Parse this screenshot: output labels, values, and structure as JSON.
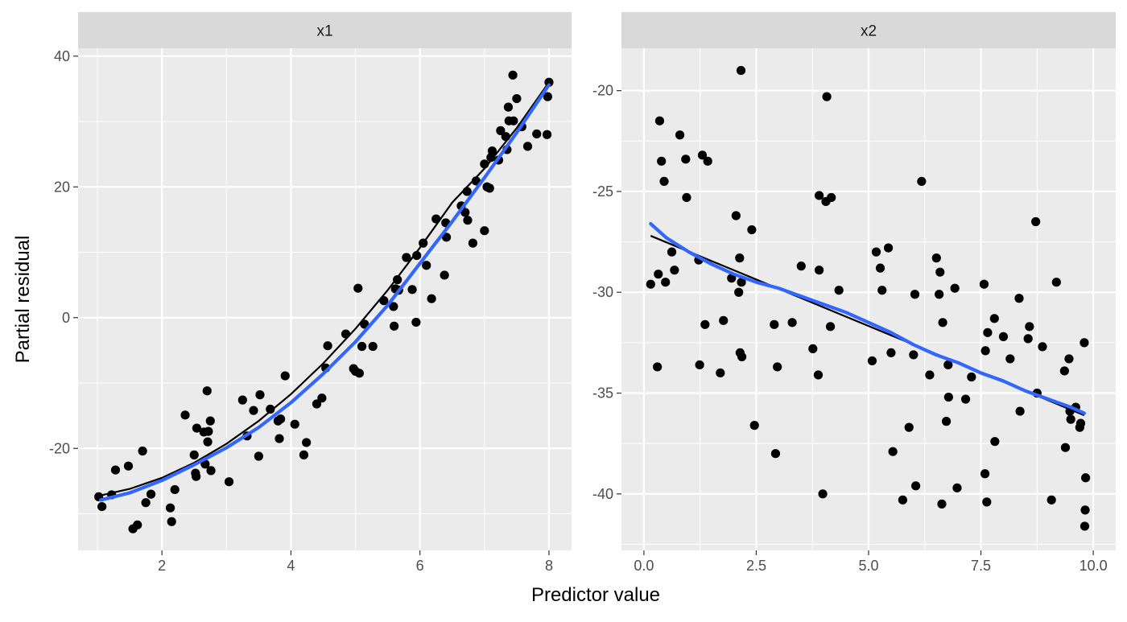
{
  "colors": {
    "panel_bg": "#EBEBEB",
    "strip_bg": "#D9D9D9",
    "grid": "#FFFFFF",
    "points": "#000000",
    "loess_line": "#3366FF",
    "fit_line": "#000000",
    "tick_text": "#4D4D4D"
  },
  "labels": {
    "xlabel": "Predictor value",
    "ylabel": "Partial residual"
  },
  "chart_data": [
    {
      "type": "scatter",
      "facet_label": "x1",
      "xlim": [
        0.7,
        8.35
      ],
      "ylim": [
        -35.6,
        41.2
      ],
      "x_ticks": [
        2,
        4,
        6,
        8
      ],
      "x_tick_labels": [
        "2",
        "4",
        "6",
        "8"
      ],
      "y_ticks": [
        -20,
        0,
        20,
        40
      ],
      "y_tick_labels": [
        "-20",
        "0",
        "20",
        "40"
      ],
      "grid": true,
      "points": [
        [
          1.02,
          -27.4
        ],
        [
          1.07,
          -28.9
        ],
        [
          1.22,
          -27.1
        ],
        [
          1.28,
          -23.3
        ],
        [
          1.48,
          -22.7
        ],
        [
          1.55,
          -32.3
        ],
        [
          1.62,
          -31.7
        ],
        [
          1.7,
          -20.4
        ],
        [
          1.75,
          -28.3
        ],
        [
          1.83,
          -27.0
        ],
        [
          2.13,
          -29.1
        ],
        [
          2.15,
          -31.2
        ],
        [
          2.2,
          -26.3
        ],
        [
          2.36,
          -14.9
        ],
        [
          2.5,
          -21.0
        ],
        [
          2.52,
          -23.8
        ],
        [
          2.53,
          -24.3
        ],
        [
          2.54,
          -16.9
        ],
        [
          2.65,
          -17.5
        ],
        [
          2.67,
          -22.4
        ],
        [
          2.7,
          -11.2
        ],
        [
          2.71,
          -19.0
        ],
        [
          2.72,
          -17.4
        ],
        [
          2.75,
          -15.8
        ],
        [
          2.76,
          -23.4
        ],
        [
          3.04,
          -25.1
        ],
        [
          3.25,
          -12.6
        ],
        [
          3.32,
          -18.1
        ],
        [
          3.42,
          -14.2
        ],
        [
          3.5,
          -21.2
        ],
        [
          3.52,
          -11.8
        ],
        [
          3.68,
          -14.0
        ],
        [
          3.8,
          -15.8
        ],
        [
          3.82,
          -18.5
        ],
        [
          3.84,
          -15.5
        ],
        [
          3.91,
          -8.9
        ],
        [
          4.06,
          -16.3
        ],
        [
          4.2,
          -21.0
        ],
        [
          4.24,
          -19.1
        ],
        [
          4.4,
          -13.2
        ],
        [
          4.48,
          -12.3
        ],
        [
          4.54,
          -7.7
        ],
        [
          4.57,
          -4.3
        ],
        [
          4.85,
          -2.5
        ],
        [
          4.97,
          -7.8
        ],
        [
          5.0,
          -8.2
        ],
        [
          5.04,
          4.5
        ],
        [
          5.06,
          -8.5
        ],
        [
          5.1,
          -4.4
        ],
        [
          5.14,
          -1.0
        ],
        [
          5.27,
          -4.4
        ],
        [
          5.44,
          2.6
        ],
        [
          5.59,
          1.7
        ],
        [
          5.6,
          -1.3
        ],
        [
          5.62,
          4.4
        ],
        [
          5.65,
          5.8
        ],
        [
          5.67,
          4.2
        ],
        [
          5.79,
          9.2
        ],
        [
          5.88,
          4.3
        ],
        [
          5.94,
          -0.7
        ],
        [
          5.95,
          9.5
        ],
        [
          6.05,
          11.4
        ],
        [
          6.1,
          8.0
        ],
        [
          6.18,
          2.9
        ],
        [
          6.25,
          15.1
        ],
        [
          6.38,
          6.5
        ],
        [
          6.4,
          14.5
        ],
        [
          6.41,
          12.3
        ],
        [
          6.64,
          17.1
        ],
        [
          6.7,
          16.1
        ],
        [
          6.73,
          19.3
        ],
        [
          6.74,
          14.9
        ],
        [
          6.82,
          11.4
        ],
        [
          6.87,
          20.9
        ],
        [
          7.0,
          13.3
        ],
        [
          7.0,
          23.5
        ],
        [
          7.04,
          20.0
        ],
        [
          7.08,
          19.8
        ],
        [
          7.1,
          24.5
        ],
        [
          7.12,
          25.5
        ],
        [
          7.22,
          24.1
        ],
        [
          7.25,
          28.6
        ],
        [
          7.33,
          27.7
        ],
        [
          7.35,
          25.7
        ],
        [
          7.37,
          32.2
        ],
        [
          7.38,
          30.1
        ],
        [
          7.44,
          37.1
        ],
        [
          7.45,
          30.1
        ],
        [
          7.5,
          33.5
        ],
        [
          7.58,
          29.2
        ],
        [
          7.67,
          26.2
        ],
        [
          7.81,
          28.1
        ],
        [
          7.97,
          28.0
        ],
        [
          7.98,
          33.8
        ],
        [
          8.0,
          36.0
        ]
      ],
      "loess_line": [
        [
          1.05,
          -27.9
        ],
        [
          1.5,
          -26.8
        ],
        [
          2.0,
          -24.9
        ],
        [
          2.5,
          -22.5
        ],
        [
          3.0,
          -19.9
        ],
        [
          3.5,
          -16.8
        ],
        [
          4.0,
          -13.0
        ],
        [
          4.5,
          -8.6
        ],
        [
          5.0,
          -3.7
        ],
        [
          5.5,
          1.9
        ],
        [
          6.0,
          8.3
        ],
        [
          6.5,
          14.7
        ],
        [
          7.0,
          21.4
        ],
        [
          7.5,
          28.3
        ],
        [
          8.0,
          35.6
        ]
      ],
      "fit_line": [
        [
          1.0,
          -27.3
        ],
        [
          1.5,
          -26.2
        ],
        [
          2.0,
          -24.5
        ],
        [
          2.5,
          -22.2
        ],
        [
          3.0,
          -19.3
        ],
        [
          3.5,
          -15.8
        ],
        [
          4.0,
          -11.7
        ],
        [
          4.5,
          -7.0
        ],
        [
          5.0,
          -1.7
        ],
        [
          5.5,
          4.2
        ],
        [
          6.0,
          10.7
        ],
        [
          6.5,
          17.6
        ],
        [
          7.0,
          22.8
        ],
        [
          7.5,
          29.0
        ],
        [
          8.0,
          36.0
        ]
      ]
    },
    {
      "type": "scatter",
      "facet_label": "x2",
      "xlim": [
        -0.5,
        10.5
      ],
      "ylim": [
        -42.8,
        -17.9
      ],
      "x_ticks": [
        0,
        2.5,
        5,
        7.5,
        10
      ],
      "x_tick_labels": [
        "0.0",
        "2.5",
        "5.0",
        "7.5",
        "10.0"
      ],
      "y_ticks": [
        -40,
        -35,
        -30,
        -25,
        -20
      ],
      "y_tick_labels": [
        "-40",
        "-35",
        "-30",
        "-25",
        "-20"
      ],
      "grid": true,
      "points": [
        [
          0.15,
          -29.6
        ],
        [
          0.3,
          -33.7
        ],
        [
          0.32,
          -29.1
        ],
        [
          0.35,
          -21.5
        ],
        [
          0.39,
          -23.5
        ],
        [
          0.45,
          -24.5
        ],
        [
          0.48,
          -29.5
        ],
        [
          0.62,
          -28.0
        ],
        [
          0.68,
          -28.9
        ],
        [
          0.8,
          -22.2
        ],
        [
          0.93,
          -23.4
        ],
        [
          0.95,
          -25.3
        ],
        [
          1.22,
          -28.4
        ],
        [
          1.24,
          -33.6
        ],
        [
          1.3,
          -23.2
        ],
        [
          1.36,
          -31.6
        ],
        [
          1.42,
          -23.5
        ],
        [
          1.7,
          -34.0
        ],
        [
          1.77,
          -31.4
        ],
        [
          1.95,
          -29.3
        ],
        [
          2.05,
          -26.2
        ],
        [
          2.11,
          -30.0
        ],
        [
          2.13,
          -28.3
        ],
        [
          2.14,
          -33.0
        ],
        [
          2.16,
          -19.0
        ],
        [
          2.17,
          -29.5
        ],
        [
          2.18,
          -33.2
        ],
        [
          2.4,
          -26.9
        ],
        [
          2.46,
          -36.6
        ],
        [
          2.9,
          -31.6
        ],
        [
          2.93,
          -38.0
        ],
        [
          2.97,
          -33.7
        ],
        [
          3.3,
          -31.5
        ],
        [
          3.5,
          -28.7
        ],
        [
          3.76,
          -32.8
        ],
        [
          3.88,
          -34.1
        ],
        [
          3.9,
          -28.9
        ],
        [
          3.9,
          -25.2
        ],
        [
          3.98,
          -40.0
        ],
        [
          4.05,
          -25.5
        ],
        [
          4.07,
          -20.3
        ],
        [
          4.15,
          -31.7
        ],
        [
          4.17,
          -25.3
        ],
        [
          4.34,
          -29.9
        ],
        [
          5.08,
          -33.4
        ],
        [
          5.17,
          -28.0
        ],
        [
          5.26,
          -28.8
        ],
        [
          5.3,
          -29.9
        ],
        [
          5.44,
          -27.8
        ],
        [
          5.5,
          -33.0
        ],
        [
          5.54,
          -37.9
        ],
        [
          5.76,
          -40.3
        ],
        [
          5.9,
          -36.7
        ],
        [
          6.0,
          -33.1
        ],
        [
          6.03,
          -30.1
        ],
        [
          6.05,
          -39.6
        ],
        [
          6.18,
          -24.5
        ],
        [
          6.36,
          -34.1
        ],
        [
          6.51,
          -28.3
        ],
        [
          6.57,
          -30.1
        ],
        [
          6.59,
          -29.0
        ],
        [
          6.63,
          -40.5
        ],
        [
          6.65,
          -31.5
        ],
        [
          6.73,
          -36.4
        ],
        [
          6.77,
          -33.6
        ],
        [
          6.78,
          -35.2
        ],
        [
          6.92,
          -29.8
        ],
        [
          6.97,
          -39.7
        ],
        [
          7.16,
          -35.3
        ],
        [
          7.29,
          -34.2
        ],
        [
          7.57,
          -29.6
        ],
        [
          7.59,
          -39.0
        ],
        [
          7.6,
          -32.9
        ],
        [
          7.63,
          -40.4
        ],
        [
          7.65,
          -32.0
        ],
        [
          7.8,
          -31.3
        ],
        [
          7.81,
          -37.4
        ],
        [
          8.0,
          -32.2
        ],
        [
          8.15,
          -33.3
        ],
        [
          8.35,
          -30.3
        ],
        [
          8.37,
          -35.9
        ],
        [
          8.55,
          -32.3
        ],
        [
          8.58,
          -31.7
        ],
        [
          8.72,
          -26.5
        ],
        [
          8.75,
          -35.0
        ],
        [
          8.87,
          -32.7
        ],
        [
          9.07,
          -40.3
        ],
        [
          9.18,
          -29.5
        ],
        [
          9.36,
          -33.9
        ],
        [
          9.38,
          -37.7
        ],
        [
          9.46,
          -33.3
        ],
        [
          9.48,
          -35.9
        ],
        [
          9.5,
          -36.3
        ],
        [
          9.61,
          -35.7
        ],
        [
          9.7,
          -36.7
        ],
        [
          9.72,
          -36.5
        ],
        [
          9.8,
          -32.5
        ],
        [
          9.81,
          -41.6
        ],
        [
          9.82,
          -40.8
        ],
        [
          9.83,
          -39.2
        ]
      ],
      "loess_line": [
        [
          0.15,
          -26.6
        ],
        [
          0.5,
          -27.3
        ],
        [
          1.0,
          -28.0
        ],
        [
          1.5,
          -28.6
        ],
        [
          2.0,
          -29.1
        ],
        [
          2.5,
          -29.5
        ],
        [
          3.0,
          -29.8
        ],
        [
          3.5,
          -30.2
        ],
        [
          4.0,
          -30.6
        ],
        [
          4.5,
          -31.0
        ],
        [
          5.0,
          -31.5
        ],
        [
          5.5,
          -32.0
        ],
        [
          6.0,
          -32.6
        ],
        [
          6.5,
          -33.1
        ],
        [
          7.0,
          -33.5
        ],
        [
          7.5,
          -34.0
        ],
        [
          8.0,
          -34.4
        ],
        [
          8.5,
          -34.9
        ],
        [
          9.0,
          -35.3
        ],
        [
          9.5,
          -35.7
        ],
        [
          9.8,
          -36.0
        ]
      ],
      "fit_line": [
        [
          0.15,
          -27.2
        ],
        [
          9.8,
          -36.1
        ]
      ]
    }
  ]
}
